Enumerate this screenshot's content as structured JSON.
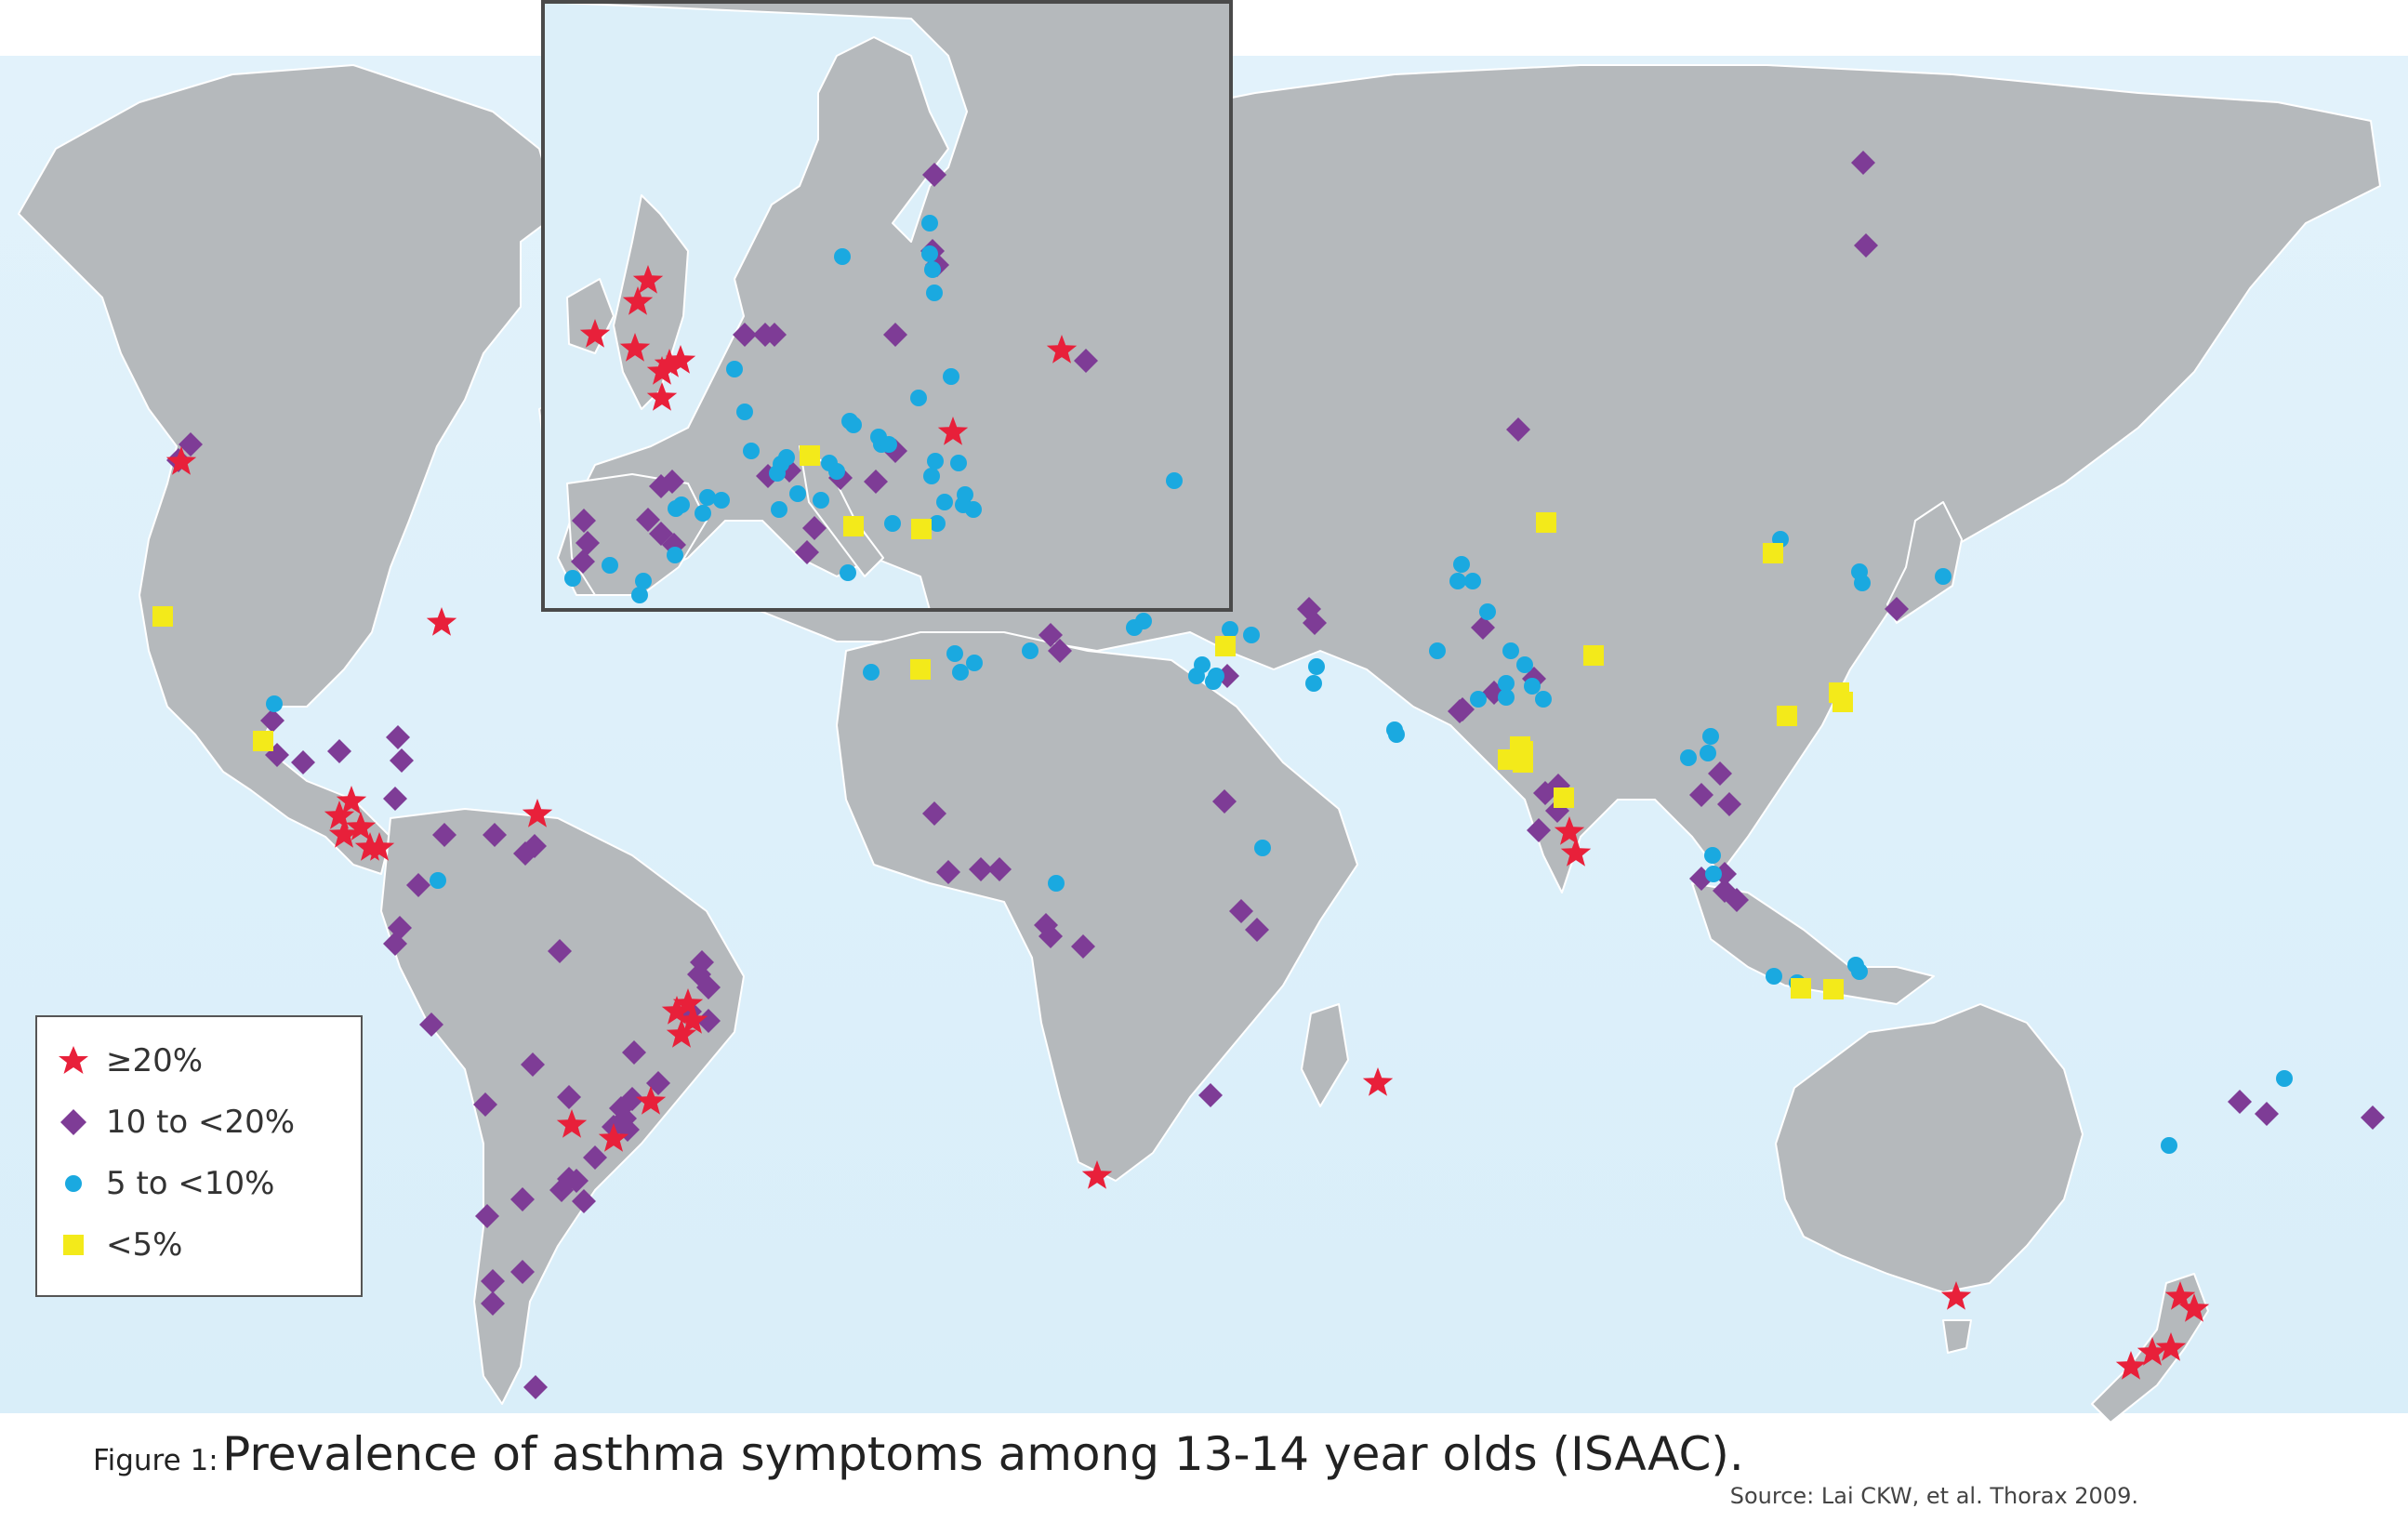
{
  "caption": {
    "prefix": "Figure 1:",
    "title": "Prevalence of asthma symptoms among 13-14 year olds (ISAAC)."
  },
  "source": "Source: Lai CKW, et al. Thorax 2009.",
  "colors": {
    "ocean": "#dceff9",
    "land": "#b5b9bc",
    "high": "#e8203a",
    "mid_high": "#7e3c96",
    "mid_low": "#1aa9e0",
    "low": "#f3ea1a"
  },
  "legend": [
    {
      "id": "high",
      "label": "≥20%",
      "shape": "star-icon"
    },
    {
      "id": "mid_high",
      "label": "10 to <20%",
      "shape": "diamond-icon"
    },
    {
      "id": "mid_low",
      "label": "5 to <10%",
      "shape": "circle-icon"
    },
    {
      "id": "low",
      "label": "<5%",
      "shape": "square-icon"
    }
  ]
}
